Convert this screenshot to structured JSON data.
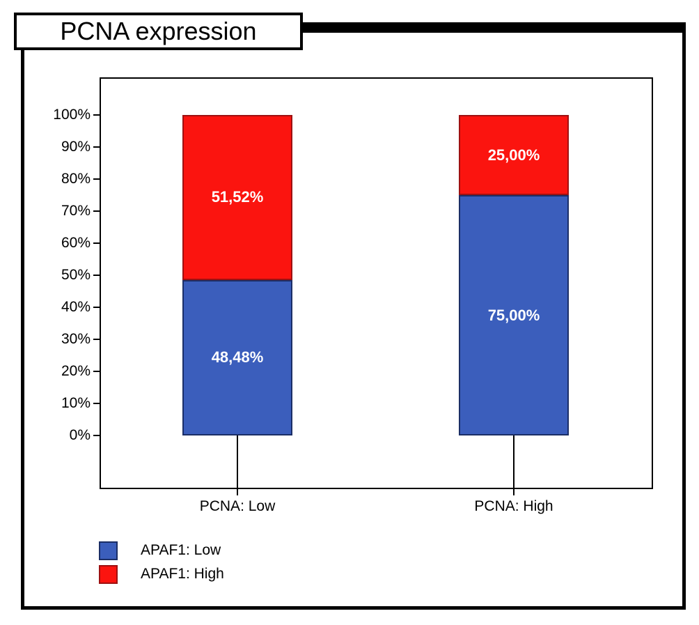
{
  "title": "PCNA expression",
  "chart_data": {
    "type": "bar",
    "stacked": true,
    "orientation": "vertical",
    "title": "PCNA expression",
    "categories": [
      "PCNA: Low",
      "PCNA: High"
    ],
    "series": [
      {
        "name": "APAF1: Low",
        "color": "#3B5EBC",
        "border_color": "#1B2E66",
        "values": [
          48.48,
          75.0
        ],
        "value_labels": [
          "48,48%",
          "75,00%"
        ]
      },
      {
        "name": "APAF1: High",
        "color": "#FB140F",
        "border_color": "#9E1111",
        "values": [
          51.52,
          25.0
        ],
        "value_labels": [
          "51,52%",
          "25,00%"
        ]
      }
    ],
    "ylim": [
      0,
      100
    ],
    "y_tick_labels": [
      "0%",
      "10%",
      "20%",
      "30%",
      "40%",
      "50%",
      "60%",
      "70%",
      "80%",
      "90%",
      "100%"
    ],
    "y_tick_values": [
      0,
      10,
      20,
      30,
      40,
      50,
      60,
      70,
      80,
      90,
      100
    ],
    "grid": false,
    "value_label_color": "#FFFFFF",
    "legend": {
      "position": "bottom-left",
      "entries": [
        "APAF1: Low",
        "APAF1: High"
      ]
    }
  }
}
